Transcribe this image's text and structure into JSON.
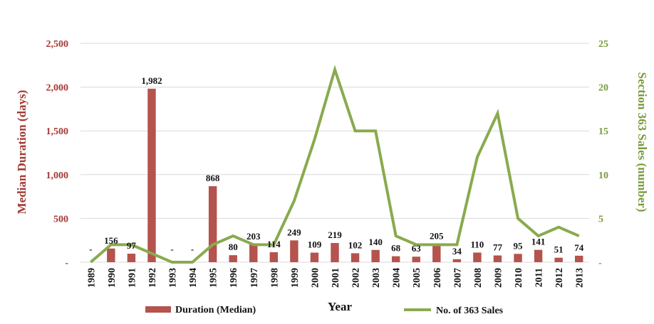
{
  "chart_data": {
    "type": "bar+line",
    "categories": [
      "1989",
      "1990",
      "1991",
      "1992",
      "1993",
      "1994",
      "1995",
      "1996",
      "1997",
      "1998",
      "1999",
      "2000",
      "2001",
      "2002",
      "2003",
      "2004",
      "2005",
      "2006",
      "2007",
      "2008",
      "2009",
      "2010",
      "2011",
      "2012",
      "2013"
    ],
    "series": [
      {
        "name": "Duration (Median)",
        "type": "bar",
        "axis": "left",
        "color": "#b5534d",
        "values": [
          null,
          156,
          97,
          1982,
          null,
          null,
          868,
          80,
          203,
          114,
          249,
          109,
          219,
          102,
          140,
          68,
          63,
          205,
          34,
          110,
          77,
          95,
          141,
          51,
          74
        ],
        "labels": [
          "-",
          "156",
          "97",
          "1,982",
          "-",
          "-",
          "868",
          "80",
          "203",
          "114",
          "249",
          "109",
          "219",
          "102",
          "140",
          "68",
          "63",
          "205",
          "34",
          "110",
          "77",
          "95",
          "141",
          "51",
          "74"
        ]
      },
      {
        "name": "No. of 363 Sales",
        "type": "line",
        "axis": "right",
        "color": "#8aaa4e",
        "values": [
          0,
          2,
          2,
          1,
          0,
          0,
          2,
          3,
          2,
          2,
          7,
          14,
          22,
          15,
          15,
          3,
          2,
          2,
          2,
          12,
          17,
          5,
          3,
          4,
          3
        ]
      }
    ],
    "xlabel": "Year",
    "ylabel_left": "Median Duration (days)",
    "ylabel_right": "Section 363 Sales (number)",
    "ylim_left": [
      0,
      2500
    ],
    "ylim_right": [
      0,
      25
    ],
    "left_ticks": [
      0,
      500,
      1000,
      1500,
      2000,
      2500
    ],
    "left_tick_labels": [
      "-",
      "500",
      "1,000",
      "1,500",
      "2,000",
      "2,500"
    ],
    "right_ticks": [
      0,
      5,
      10,
      15,
      20,
      25
    ],
    "right_tick_labels": [
      "-",
      "5",
      "10",
      "15",
      "20",
      "25"
    ],
    "legend_placement": "bottom",
    "grid": "horizontal"
  }
}
